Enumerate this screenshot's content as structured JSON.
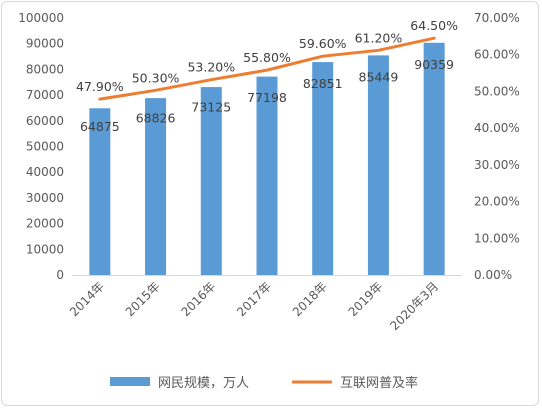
{
  "chart_data": {
    "type": "bar",
    "categories": [
      "2014年",
      "2015年",
      "2016年",
      "2017年",
      "2018年",
      "2019年",
      "2020年3月"
    ],
    "series": [
      {
        "name": "网民规模，万人",
        "type": "bar",
        "axis": "left",
        "color": "#5b9bd5",
        "values": [
          64875,
          68826,
          73125,
          77198,
          82851,
          85449,
          90359
        ],
        "labels": [
          "64875",
          "68826",
          "73125",
          "77198",
          "82851",
          "85449",
          "90359"
        ]
      },
      {
        "name": "互联网普及率",
        "type": "line",
        "axis": "right",
        "color": "#ed7d31",
        "values": [
          47.9,
          50.3,
          53.2,
          55.8,
          59.6,
          61.2,
          64.5
        ],
        "labels": [
          "47.90%",
          "50.30%",
          "53.20%",
          "55.80%",
          "59.60%",
          "61.20%",
          "64.50%"
        ]
      }
    ],
    "y_left": {
      "ylim": [
        0,
        100000
      ],
      "ticks": [
        "0",
        "10000",
        "20000",
        "30000",
        "40000",
        "50000",
        "60000",
        "70000",
        "80000",
        "90000",
        "100000"
      ]
    },
    "y_right": {
      "ylim": [
        0,
        70
      ],
      "ticks": [
        "0.00%",
        "10.00%",
        "20.00%",
        "30.00%",
        "40.00%",
        "50.00%",
        "60.00%",
        "70.00%"
      ]
    },
    "grid": false,
    "legend_position": "bottom"
  }
}
